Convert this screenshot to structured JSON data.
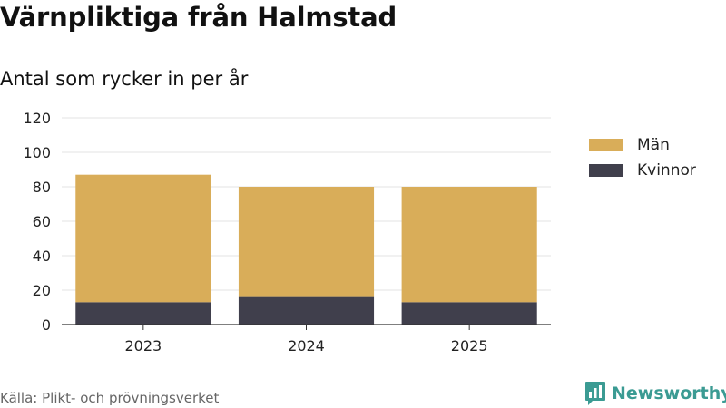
{
  "header": {
    "title": "Värnpliktiga från Halmstad",
    "subtitle": "Antal som rycker in per år"
  },
  "legend": {
    "items": [
      {
        "label": "Män",
        "color": "#d9ad59"
      },
      {
        "label": "Kvinnor",
        "color": "#403f4c"
      }
    ]
  },
  "footer": {
    "source": "Källa: Plikt- och prövningsverket",
    "logo_text": "Newsworthy",
    "logo_icon": "newsworthy-bar-chart-icon"
  },
  "chart_data": {
    "type": "bar",
    "stacked": true,
    "categories": [
      "2023",
      "2024",
      "2025"
    ],
    "series": [
      {
        "name": "Kvinnor",
        "values": [
          13,
          16,
          13
        ],
        "color": "#403f4c"
      },
      {
        "name": "Män",
        "values": [
          74,
          64,
          67
        ],
        "color": "#d9ad59"
      }
    ],
    "title": "Värnpliktiga från Halmstad",
    "subtitle": "Antal som rycker in per år",
    "xlabel": "",
    "ylabel": "",
    "ylim": [
      0,
      120
    ],
    "yticks": [
      0,
      20,
      40,
      60,
      80,
      100,
      120
    ],
    "grid": true,
    "legend_position": "right"
  }
}
